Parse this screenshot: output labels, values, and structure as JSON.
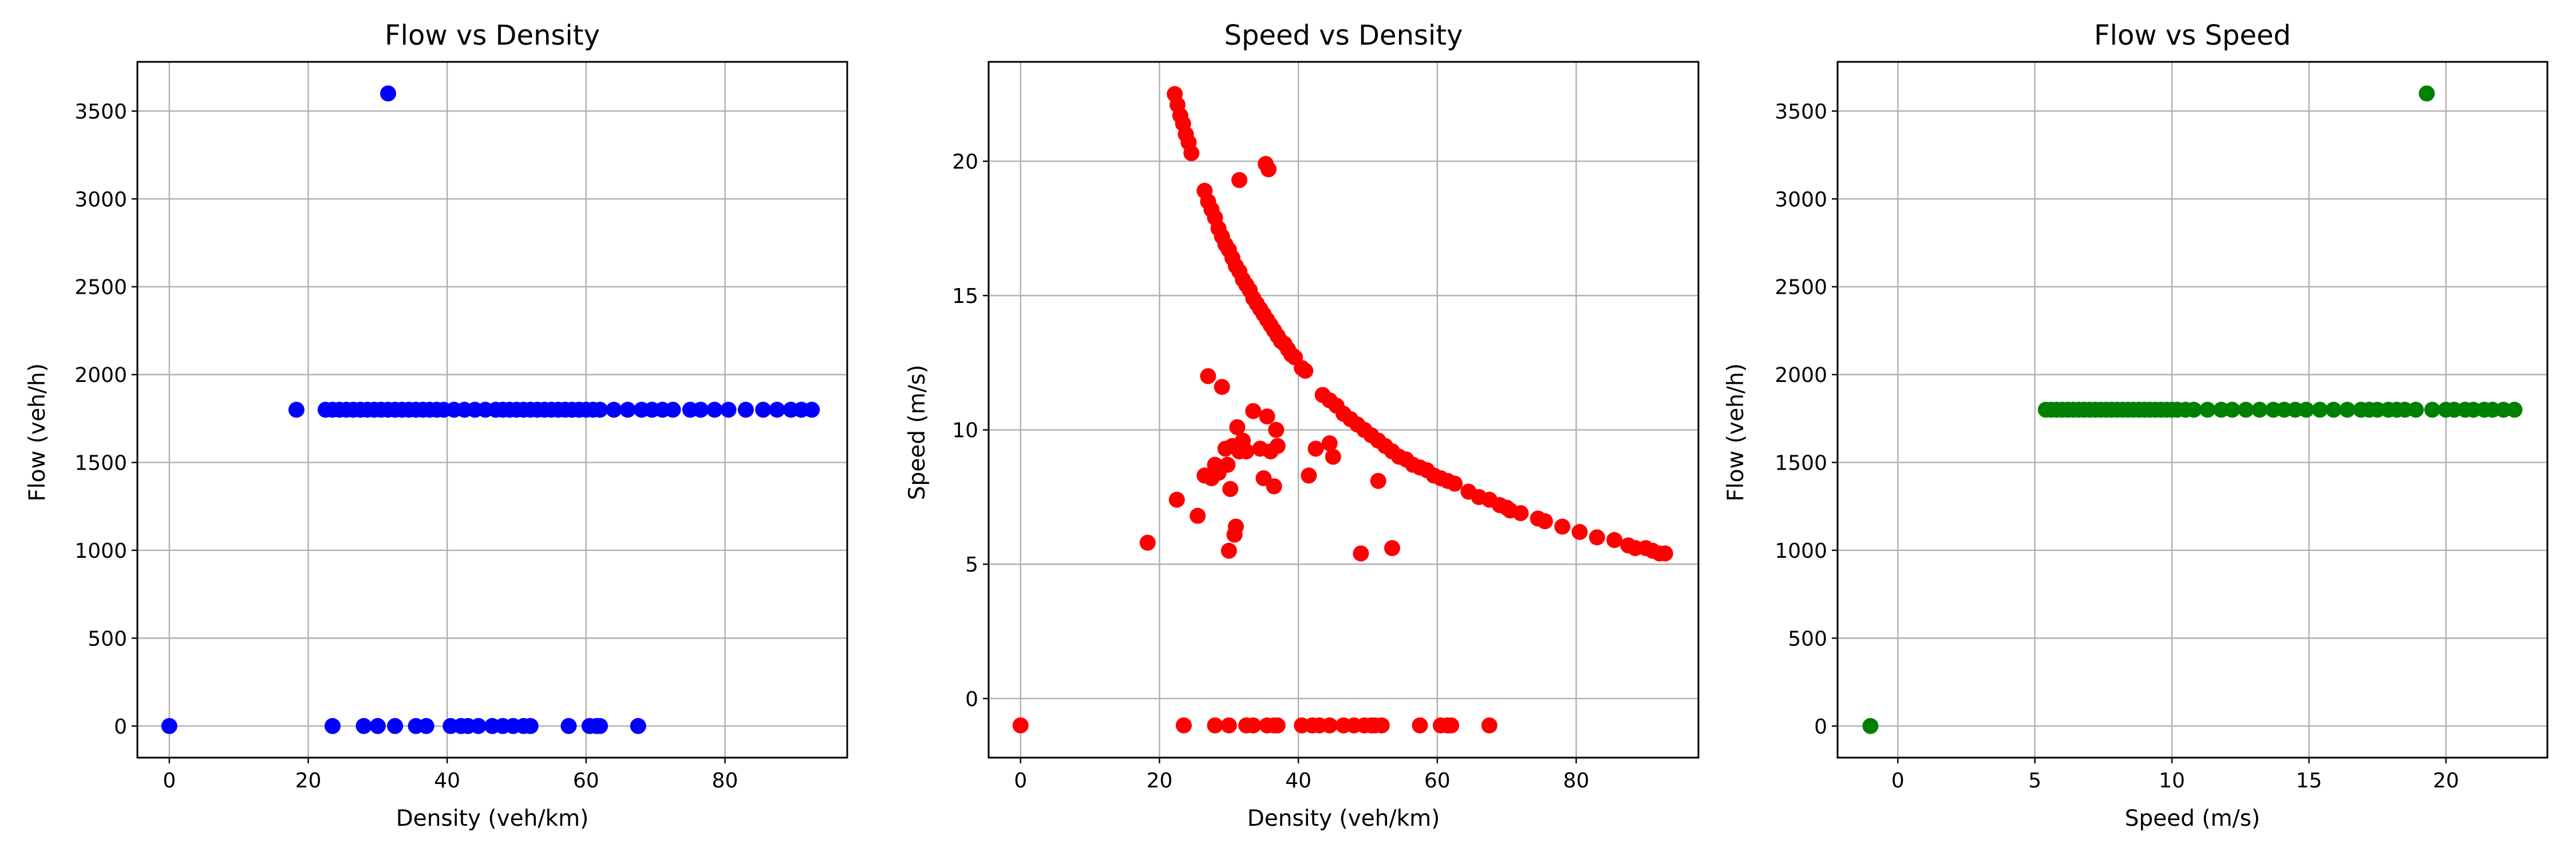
{
  "chart_data": [
    {
      "type": "scatter",
      "title": "Flow vs Density",
      "xlabel": "Density (veh/km)",
      "ylabel": "Flow (veh/h)",
      "xlim": [
        -4.6,
        97.6
      ],
      "ylim": [
        -180,
        3780
      ],
      "xticks": [
        0,
        20,
        40,
        60,
        80
      ],
      "yticks": [
        0,
        500,
        1000,
        1500,
        2000,
        2500,
        3000,
        3500
      ],
      "grid": true,
      "color": "#0000ff",
      "points": [
        [
          0,
          0
        ],
        [
          31.5,
          3600
        ],
        [
          18.3,
          1800
        ],
        [
          22.5,
          1800
        ],
        [
          23.5,
          1800
        ],
        [
          24.5,
          1800
        ],
        [
          25.5,
          1800
        ],
        [
          26.5,
          1800
        ],
        [
          27.5,
          1800
        ],
        [
          28.5,
          1800
        ],
        [
          29.5,
          1800
        ],
        [
          30.5,
          1800
        ],
        [
          31.5,
          1800
        ],
        [
          32.5,
          1800
        ],
        [
          33.5,
          1800
        ],
        [
          34.5,
          1800
        ],
        [
          35.5,
          1800
        ],
        [
          36.5,
          1800
        ],
        [
          37.5,
          1800
        ],
        [
          38.5,
          1800
        ],
        [
          39.5,
          1800
        ],
        [
          41,
          1800
        ],
        [
          42.5,
          1800
        ],
        [
          44,
          1800
        ],
        [
          45.5,
          1800
        ],
        [
          47,
          1800
        ],
        [
          48,
          1800
        ],
        [
          49,
          1800
        ],
        [
          50,
          1800
        ],
        [
          51,
          1800
        ],
        [
          52,
          1800
        ],
        [
          53,
          1800
        ],
        [
          54,
          1800
        ],
        [
          55,
          1800
        ],
        [
          56,
          1800
        ],
        [
          57,
          1800
        ],
        [
          58,
          1800
        ],
        [
          59,
          1800
        ],
        [
          60,
          1800
        ],
        [
          61,
          1800
        ],
        [
          62,
          1800
        ],
        [
          64,
          1800
        ],
        [
          66,
          1800
        ],
        [
          68,
          1800
        ],
        [
          69.5,
          1800
        ],
        [
          71,
          1800
        ],
        [
          72.5,
          1800
        ],
        [
          75,
          1800
        ],
        [
          76.5,
          1800
        ],
        [
          78.5,
          1800
        ],
        [
          80.5,
          1800
        ],
        [
          83,
          1800
        ],
        [
          85.5,
          1800
        ],
        [
          87.5,
          1800
        ],
        [
          89.5,
          1800
        ],
        [
          91,
          1800
        ],
        [
          92.5,
          1800
        ],
        [
          23.5,
          0
        ],
        [
          28,
          0
        ],
        [
          30,
          0
        ],
        [
          32.5,
          0
        ],
        [
          35.5,
          0
        ],
        [
          37,
          0
        ],
        [
          40.5,
          0
        ],
        [
          42,
          0
        ],
        [
          43,
          0
        ],
        [
          44.5,
          0
        ],
        [
          46.5,
          0
        ],
        [
          48,
          0
        ],
        [
          49.5,
          0
        ],
        [
          51,
          0
        ],
        [
          52,
          0
        ],
        [
          57.5,
          0
        ],
        [
          60.5,
          0
        ],
        [
          61.5,
          0
        ],
        [
          62,
          0
        ],
        [
          67.5,
          0
        ]
      ]
    },
    {
      "type": "scatter",
      "title": "Speed vs Density",
      "xlabel": "Density (veh/km)",
      "ylabel": "Speed (m/s)",
      "xlim": [
        -4.6,
        97.6
      ],
      "ylim": [
        -2.2,
        23.7
      ],
      "xticks": [
        0,
        20,
        40,
        60,
        80
      ],
      "yticks": [
        0,
        5,
        10,
        15,
        20
      ],
      "grid": true,
      "color": "#ff0000",
      "points": [
        [
          22.2,
          22.5
        ],
        [
          22.6,
          22.1
        ],
        [
          23,
          21.7
        ],
        [
          23.4,
          21.4
        ],
        [
          23.8,
          21
        ],
        [
          24.2,
          20.7
        ],
        [
          24.6,
          20.3
        ],
        [
          26.5,
          18.9
        ],
        [
          27,
          18.5
        ],
        [
          27.5,
          18.2
        ],
        [
          28,
          17.9
        ],
        [
          28.5,
          17.5
        ],
        [
          29,
          17.2
        ],
        [
          29.5,
          16.9
        ],
        [
          30,
          16.7
        ],
        [
          30.5,
          16.4
        ],
        [
          31,
          16.1
        ],
        [
          31.5,
          15.9
        ],
        [
          32,
          15.6
        ],
        [
          32.5,
          15.4
        ],
        [
          33,
          15.2
        ],
        [
          33.5,
          14.9
        ],
        [
          34,
          14.7
        ],
        [
          34.5,
          14.5
        ],
        [
          35,
          14.3
        ],
        [
          35.5,
          14.1
        ],
        [
          36,
          13.9
        ],
        [
          36.5,
          13.7
        ],
        [
          37,
          13.5
        ],
        [
          37.5,
          13.3
        ],
        [
          38,
          13.2
        ],
        [
          38.5,
          13
        ],
        [
          39,
          12.8
        ],
        [
          39.5,
          12.7
        ],
        [
          40.5,
          12.3
        ],
        [
          41,
          12.2
        ],
        [
          43.5,
          11.3
        ],
        [
          44.5,
          11.1
        ],
        [
          45.5,
          10.9
        ],
        [
          46.5,
          10.6
        ],
        [
          47.5,
          10.4
        ],
        [
          48.5,
          10.2
        ],
        [
          49.5,
          10
        ],
        [
          50.5,
          9.8
        ],
        [
          51.5,
          9.6
        ],
        [
          52.5,
          9.4
        ],
        [
          53.5,
          9.2
        ],
        [
          54.5,
          9
        ],
        [
          55.5,
          8.9
        ],
        [
          56.5,
          8.7
        ],
        [
          57.5,
          8.6
        ],
        [
          58.5,
          8.5
        ],
        [
          59.5,
          8.3
        ],
        [
          60.5,
          8.2
        ],
        [
          61.5,
          8.1
        ],
        [
          62.5,
          8
        ],
        [
          64.5,
          7.7
        ],
        [
          66,
          7.5
        ],
        [
          67.5,
          7.4
        ],
        [
          69,
          7.2
        ],
        [
          70,
          7.1
        ],
        [
          70.5,
          7
        ],
        [
          72,
          6.9
        ],
        [
          74.5,
          6.7
        ],
        [
          75.5,
          6.6
        ],
        [
          78,
          6.4
        ],
        [
          80.5,
          6.2
        ],
        [
          83,
          6
        ],
        [
          85.5,
          5.9
        ],
        [
          87.5,
          5.7
        ],
        [
          88.5,
          5.6
        ],
        [
          90,
          5.6
        ],
        [
          91,
          5.5
        ],
        [
          92,
          5.4
        ],
        [
          92.8,
          5.4
        ],
        [
          31.5,
          19.3
        ],
        [
          35.3,
          19.9
        ],
        [
          35.7,
          19.7
        ],
        [
          18.3,
          5.8
        ],
        [
          22.5,
          7.4
        ],
        [
          25.5,
          6.8
        ],
        [
          26.5,
          8.3
        ],
        [
          27,
          12
        ],
        [
          27.5,
          8.2
        ],
        [
          28,
          8.7
        ],
        [
          28.5,
          8.4
        ],
        [
          29,
          11.6
        ],
        [
          29.5,
          9.3
        ],
        [
          29.8,
          8.7
        ],
        [
          30,
          5.5
        ],
        [
          30.2,
          7.8
        ],
        [
          30.5,
          9.4
        ],
        [
          30.8,
          6.1
        ],
        [
          31,
          6.4
        ],
        [
          31.2,
          10.1
        ],
        [
          31.5,
          9.2
        ],
        [
          32,
          9.6
        ],
        [
          32.5,
          9.2
        ],
        [
          33.5,
          10.7
        ],
        [
          34.5,
          9.3
        ],
        [
          35,
          8.2
        ],
        [
          35.5,
          10.5
        ],
        [
          36,
          9.2
        ],
        [
          36.5,
          7.9
        ],
        [
          36.8,
          10
        ],
        [
          37,
          9.4
        ],
        [
          41.5,
          8.3
        ],
        [
          42.5,
          9.3
        ],
        [
          44.5,
          9.5
        ],
        [
          45,
          9
        ],
        [
          49,
          5.4
        ],
        [
          51.5,
          8.1
        ],
        [
          53.5,
          5.6
        ],
        [
          0,
          -1
        ],
        [
          23.5,
          -1
        ],
        [
          28,
          -1
        ],
        [
          30,
          -1
        ],
        [
          32.5,
          -1
        ],
        [
          33.5,
          -1
        ],
        [
          35.5,
          -1
        ],
        [
          36.5,
          -1
        ],
        [
          37,
          -1
        ],
        [
          40.5,
          -1
        ],
        [
          42,
          -1
        ],
        [
          43,
          -1
        ],
        [
          44.5,
          -1
        ],
        [
          46.5,
          -1
        ],
        [
          48,
          -1
        ],
        [
          49.5,
          -1
        ],
        [
          50.5,
          -1
        ],
        [
          51,
          -1
        ],
        [
          52,
          -1
        ],
        [
          57.5,
          -1
        ],
        [
          60.5,
          -1
        ],
        [
          61.5,
          -1
        ],
        [
          62,
          -1
        ],
        [
          67.5,
          -1
        ]
      ]
    },
    {
      "type": "scatter",
      "title": "Flow vs Speed",
      "xlabel": "Speed (m/s)",
      "ylabel": "Flow (veh/h)",
      "xlim": [
        -2.2,
        23.7
      ],
      "ylim": [
        -180,
        3780
      ],
      "xticks": [
        0,
        5,
        10,
        15,
        20
      ],
      "yticks": [
        0,
        500,
        1000,
        1500,
        2000,
        2500,
        3000,
        3500
      ],
      "grid": true,
      "color": "#008000",
      "points": [
        [
          -1,
          0
        ],
        [
          19.3,
          3600
        ],
        [
          5.4,
          1800
        ],
        [
          5.6,
          1800
        ],
        [
          5.8,
          1800
        ],
        [
          6,
          1800
        ],
        [
          6.2,
          1800
        ],
        [
          6.4,
          1800
        ],
        [
          6.6,
          1800
        ],
        [
          6.8,
          1800
        ],
        [
          7,
          1800
        ],
        [
          7.2,
          1800
        ],
        [
          7.4,
          1800
        ],
        [
          7.6,
          1800
        ],
        [
          7.8,
          1800
        ],
        [
          8,
          1800
        ],
        [
          8.2,
          1800
        ],
        [
          8.4,
          1800
        ],
        [
          8.6,
          1800
        ],
        [
          8.8,
          1800
        ],
        [
          9,
          1800
        ],
        [
          9.2,
          1800
        ],
        [
          9.4,
          1800
        ],
        [
          9.6,
          1800
        ],
        [
          9.8,
          1800
        ],
        [
          10,
          1800
        ],
        [
          10.2,
          1800
        ],
        [
          10.5,
          1800
        ],
        [
          10.8,
          1800
        ],
        [
          11.3,
          1800
        ],
        [
          11.8,
          1800
        ],
        [
          12.2,
          1800
        ],
        [
          12.7,
          1800
        ],
        [
          13.2,
          1800
        ],
        [
          13.7,
          1800
        ],
        [
          14.1,
          1800
        ],
        [
          14.5,
          1800
        ],
        [
          14.9,
          1800
        ],
        [
          15.4,
          1800
        ],
        [
          15.9,
          1800
        ],
        [
          16.4,
          1800
        ],
        [
          16.9,
          1800
        ],
        [
          17.2,
          1800
        ],
        [
          17.5,
          1800
        ],
        [
          17.9,
          1800
        ],
        [
          18.2,
          1800
        ],
        [
          18.5,
          1800
        ],
        [
          18.9,
          1800
        ],
        [
          19.5,
          1800
        ],
        [
          20,
          1800
        ],
        [
          20.3,
          1800
        ],
        [
          20.7,
          1800
        ],
        [
          21,
          1800
        ],
        [
          21.4,
          1800
        ],
        [
          21.7,
          1800
        ],
        [
          22.1,
          1800
        ],
        [
          22.5,
          1800
        ]
      ]
    }
  ]
}
